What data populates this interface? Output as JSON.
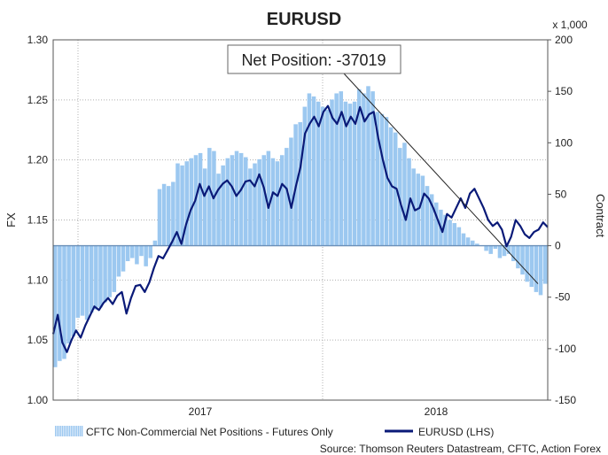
{
  "chart_data": {
    "type": "bar",
    "title": "EURUSD",
    "ylabel_left": "FX",
    "ylabel_right": "Contract",
    "right_unit": "x 1,000",
    "x_ticks": [
      "2017",
      "2018"
    ],
    "ylim_left": [
      1.0,
      1.3
    ],
    "yticks_left": [
      "1.00",
      "1.05",
      "1.10",
      "1.15",
      "1.20",
      "1.25",
      "1.30"
    ],
    "ylim_right": [
      -150,
      200
    ],
    "yticks_right": [
      "-150",
      "-100",
      "-50",
      "0",
      "50",
      "100",
      "150",
      "200"
    ],
    "grid": true,
    "legend_position": "bottom",
    "annotation": "Net Position: -37019",
    "source": "Source: Thomson Reuters Datastream, CFTC, Action Forex",
    "colors": {
      "bars": "#9cc8f0",
      "line": "#0a1a78",
      "trend": "#222222",
      "grid": "#b0b0b0"
    },
    "series": [
      {
        "name": "CFTC Non-Commercial Net Positions - Futures Only",
        "axis": "right",
        "type": "bar",
        "values": [
          -118,
          -112,
          -110,
          -95,
          -88,
          -70,
          -68,
          -72,
          -65,
          -62,
          -60,
          -55,
          -50,
          -45,
          -30,
          -25,
          -15,
          -12,
          -18,
          -10,
          -20,
          -12,
          5,
          55,
          60,
          58,
          62,
          80,
          78,
          82,
          85,
          88,
          90,
          75,
          95,
          92,
          70,
          78,
          85,
          88,
          92,
          90,
          86,
          75,
          80,
          84,
          88,
          92,
          85,
          82,
          88,
          95,
          105,
          118,
          120,
          135,
          148,
          145,
          140,
          135,
          132,
          142,
          148,
          150,
          140,
          138,
          140,
          152,
          148,
          155,
          150,
          130,
          128,
          125,
          115,
          110,
          95,
          100,
          85,
          75,
          70,
          68,
          58,
          50,
          42,
          35,
          30,
          25,
          22,
          18,
          12,
          8,
          5,
          2,
          0,
          -5,
          -8,
          -3,
          -12,
          -10,
          -8,
          -15,
          -22,
          -28,
          -35,
          -40,
          -45,
          -48,
          -37
        ]
      },
      {
        "name": "EURUSD (LHS)",
        "axis": "left",
        "type": "line",
        "values": [
          1.055,
          1.071,
          1.048,
          1.04,
          1.05,
          1.058,
          1.052,
          1.062,
          1.07,
          1.078,
          1.075,
          1.081,
          1.085,
          1.08,
          1.087,
          1.09,
          1.072,
          1.085,
          1.095,
          1.096,
          1.09,
          1.098,
          1.11,
          1.12,
          1.118,
          1.125,
          1.132,
          1.14,
          1.13,
          1.146,
          1.158,
          1.166,
          1.18,
          1.17,
          1.178,
          1.168,
          1.175,
          1.18,
          1.183,
          1.178,
          1.17,
          1.175,
          1.182,
          1.183,
          1.178,
          1.188,
          1.177,
          1.16,
          1.173,
          1.17,
          1.18,
          1.176,
          1.16,
          1.178,
          1.194,
          1.222,
          1.23,
          1.236,
          1.228,
          1.24,
          1.245,
          1.235,
          1.23,
          1.24,
          1.228,
          1.236,
          1.23,
          1.244,
          1.232,
          1.238,
          1.24,
          1.218,
          1.2,
          1.185,
          1.178,
          1.176,
          1.162,
          1.15,
          1.168,
          1.158,
          1.16,
          1.172,
          1.168,
          1.16,
          1.15,
          1.14,
          1.155,
          1.152,
          1.16,
          1.168,
          1.16,
          1.172,
          1.176,
          1.168,
          1.16,
          1.15,
          1.145,
          1.148,
          1.142,
          1.128,
          1.136,
          1.15,
          1.145,
          1.138,
          1.135,
          1.14,
          1.142,
          1.148,
          1.144
        ]
      }
    ]
  }
}
